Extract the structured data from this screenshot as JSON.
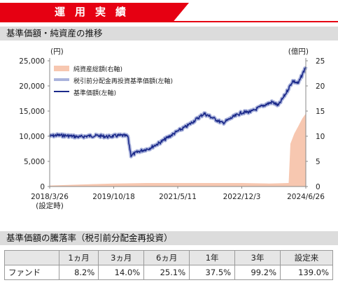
{
  "header": {
    "title": "運用実績"
  },
  "chart_section": {
    "title": "基準価額・純資産の推移"
  },
  "performance_section": {
    "title": "基準価額の騰落率（税引前分配金再投資）"
  },
  "colors": {
    "accent": "#e60012",
    "nav_line": "#1c2a8a",
    "reinvested_line": "#aab3dc",
    "net_assets_fill": "#f7c7b0"
  },
  "chart_data": {
    "type": "line",
    "left_unit": "(円)",
    "right_unit": "(億円)",
    "left_ylim": [
      0,
      25000
    ],
    "right_ylim": [
      0,
      25
    ],
    "left_ticks": [
      0,
      5000,
      10000,
      15000,
      20000,
      25000
    ],
    "left_tick_labels": [
      "0",
      "5,000",
      "10,000",
      "15,000",
      "20,000",
      "25,000"
    ],
    "right_ticks": [
      0,
      5,
      10,
      15,
      20,
      25
    ],
    "x_tick_labels": [
      "2018/3/26",
      "2019/10/18",
      "2021/5/11",
      "2022/12/3",
      "2024/6/26"
    ],
    "x_tick_sublabel": "(設定時)",
    "grid": false,
    "legend_placement": "top-left",
    "series": [
      {
        "name": "純資産総額(右軸)",
        "axis": "right",
        "kind": "area",
        "x": [
          "2018/3/26",
          "2019/1/1",
          "2019/10/18",
          "2020/8/1",
          "2021/5/11",
          "2022/3/1",
          "2022/12/3",
          "2023/8/1",
          "2024/1/25",
          "2024/2/10",
          "2024/3/15",
          "2024/4/20",
          "2024/5/25",
          "2024/6/26"
        ],
        "values": [
          0.2,
          0.4,
          0.6,
          0.7,
          0.7,
          0.7,
          0.7,
          0.6,
          0.7,
          8.5,
          10.5,
          12.0,
          13.5,
          14.5
        ]
      },
      {
        "name": "税引前分配金再投資基準価額(左軸)",
        "axis": "left",
        "kind": "line",
        "x": [
          "2018/3/26",
          "2018/6/1",
          "2018/9/1",
          "2018/12/20",
          "2019/3/1",
          "2019/6/1",
          "2019/9/1",
          "2019/10/18",
          "2020/1/1",
          "2020/2/20",
          "2020/3/20",
          "2020/6/1",
          "2020/9/1",
          "2020/12/1",
          "2021/3/1",
          "2021/5/11",
          "2021/8/1",
          "2021/11/1",
          "2022/1/1",
          "2022/3/15",
          "2022/6/15",
          "2022/9/15",
          "2022/12/3",
          "2023/3/1",
          "2023/6/1",
          "2023/9/1",
          "2023/10/25",
          "2023/12/31",
          "2024/3/1",
          "2024/4/20",
          "2024/6/26"
        ],
        "values": [
          10000,
          10200,
          10100,
          9850,
          10050,
          10100,
          9900,
          10050,
          10150,
          10000,
          6200,
          7000,
          7600,
          8700,
          10000,
          11000,
          12000,
          13500,
          14500,
          13700,
          12600,
          13800,
          14700,
          14900,
          16000,
          16800,
          16100,
          18500,
          21000,
          20500,
          23800
        ]
      },
      {
        "name": "基準価額(左軸)",
        "axis": "left",
        "kind": "line",
        "x": [
          "2018/3/26",
          "2018/6/1",
          "2018/9/1",
          "2018/12/20",
          "2019/3/1",
          "2019/6/1",
          "2019/9/1",
          "2019/10/18",
          "2020/1/1",
          "2020/2/20",
          "2020/3/20",
          "2020/6/1",
          "2020/9/1",
          "2020/12/1",
          "2021/3/1",
          "2021/5/11",
          "2021/8/1",
          "2021/11/1",
          "2022/1/1",
          "2022/3/15",
          "2022/6/15",
          "2022/9/15",
          "2022/12/3",
          "2023/3/1",
          "2023/6/1",
          "2023/9/1",
          "2023/10/25",
          "2023/12/31",
          "2024/3/1",
          "2024/4/20",
          "2024/6/26"
        ],
        "values": [
          10000,
          10200,
          10100,
          9850,
          10050,
          10100,
          9900,
          10050,
          10150,
          10000,
          6200,
          7000,
          7600,
          8700,
          10000,
          11000,
          12000,
          13500,
          14500,
          13700,
          12600,
          13800,
          14700,
          14900,
          16000,
          16800,
          16100,
          18500,
          21000,
          20500,
          23800
        ]
      }
    ]
  },
  "performance_table": {
    "headers": [
      "",
      "1ヵ月",
      "3ヵ月",
      "6ヵ月",
      "1年",
      "3年",
      "設定来"
    ],
    "rows": [
      {
        "label": "ファンド",
        "values": [
          "8.2%",
          "14.0%",
          "25.1%",
          "37.5%",
          "99.2%",
          "139.0%"
        ]
      }
    ]
  }
}
